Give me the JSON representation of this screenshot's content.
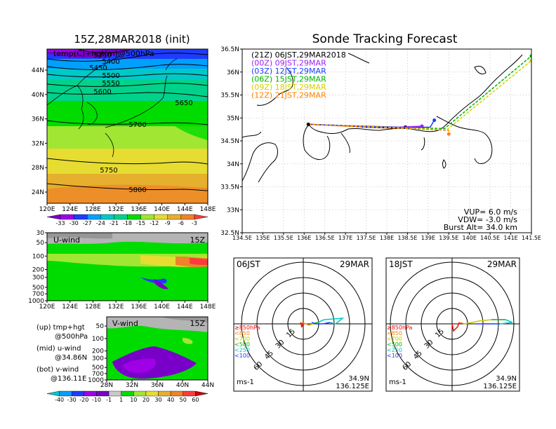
{
  "panel_titles": {
    "init": "15Z,28MAR2018 (init)",
    "main": "Sonde Tracking Forecast"
  },
  "map_overlay_label": "temp(C)+hgt(m)@500hPa",
  "legend_notes": {
    "up": "(up) tmp+hgt",
    "up2": "@500hPa",
    "mid": "(mid) u-wind",
    "mid2": "@34.86N",
    "bot": "(bot) v-wind",
    "bot2": "@136.11E"
  },
  "uwind_label": "U-wind",
  "vwind_label": "V-wind",
  "hour_tag": "15Z",
  "launch_list": [
    {
      "text": "(21Z)  06JST,29MAR2018",
      "color": "#000000"
    },
    {
      "text": "(00Z)  09JST,29MAR",
      "color": "#a020f0"
    },
    {
      "text": "(03Z)  12JST,29MAR",
      "color": "#1e3cff"
    },
    {
      "text": "(06Z)  15JST,29MAR",
      "color": "#00b400"
    },
    {
      "text": "(09Z)  18JST,29MAR",
      "color": "#d2d200"
    },
    {
      "text": "(12Z)  21JST,29MAR",
      "color": "#ff8200"
    }
  ],
  "sonde_params": {
    "vup": "VUP=  6.0  m/s",
    "vdw": "VDW=  -3.0  m/s",
    "burst": "Burst Alt=  34.0  km"
  },
  "polar": [
    {
      "left": "06JST",
      "right": "29MAR",
      "lat": "34.9N",
      "lon": "136.125E",
      "unit": "ms-1"
    },
    {
      "left": "18JST",
      "right": "29MAR",
      "lat": "34.9N",
      "lon": "136.125E",
      "unit": "ms-1"
    }
  ],
  "polar_rings": [
    "15",
    "30",
    "45",
    "60"
  ],
  "polar_levels": [
    {
      "text": "≥850hPa",
      "color": "#ff0000"
    },
    {
      "text": "<850",
      "color": "#ff8200"
    },
    {
      "text": "<700",
      "color": "#c8c800"
    },
    {
      "text": "<500",
      "color": "#00b400"
    },
    {
      "text": "<250",
      "color": "#00c8c8"
    },
    {
      "text": "<100",
      "color": "#1e3cff"
    }
  ],
  "temp_colorbar": {
    "labels": [
      "-33",
      "-30",
      "-27",
      "-24",
      "-21",
      "-18",
      "-15",
      "-12",
      "-9",
      "-6",
      "-3"
    ],
    "colors": [
      "#7800c8",
      "#a000e6",
      "#1e3cff",
      "#00a0ff",
      "#00c8c8",
      "#00d28c",
      "#00dc00",
      "#a0e632",
      "#e6dc32",
      "#e6af2d",
      "#f08228",
      "#fa3c3c"
    ]
  },
  "wind_colorbar": {
    "labels": [
      "-40",
      "-30",
      "-20",
      "-10",
      "-1",
      "1",
      "10",
      "20",
      "30",
      "40",
      "50",
      "60"
    ],
    "colors": [
      "#00c8c8",
      "#00a0ff",
      "#1e3cff",
      "#a000e6",
      "#7800c8",
      "#c8c8c8",
      "#00dc00",
      "#a0e632",
      "#e6dc32",
      "#e6af2d",
      "#f08228",
      "#fa3c3c",
      "#c80000"
    ]
  },
  "chart_data": [
    {
      "type": "heatmap",
      "title": "15Z,28MAR2018 (init)",
      "variable": "temp(C)+hgt(m)@500hPa",
      "x_ticks": [
        "120E",
        "124E",
        "128E",
        "132E",
        "136E",
        "140E",
        "144E",
        "148E"
      ],
      "y_ticks": [
        "24N",
        "28N",
        "32N",
        "36N",
        "40N",
        "44N"
      ],
      "contour_labels": [
        "5350",
        "5400",
        "5450",
        "5500",
        "5550",
        "5600",
        "5650",
        "5700",
        "5750",
        "5800"
      ],
      "temp_range": [
        -33,
        -3
      ]
    },
    {
      "type": "heatmap",
      "title": "U-wind",
      "x_ticks": [
        "120E",
        "124E",
        "128E",
        "132E",
        "136E",
        "140E",
        "144E",
        "148E"
      ],
      "y_ticks": [
        "30",
        "50",
        "100",
        "200",
        "300",
        "500",
        "700",
        "1000"
      ]
    },
    {
      "type": "heatmap",
      "title": "V-wind",
      "x_ticks": [
        "28N",
        "32N",
        "36N",
        "40N",
        "44N"
      ],
      "y_ticks": [
        "50",
        "100",
        "200",
        "300",
        "500",
        "700",
        "1000"
      ]
    },
    {
      "type": "line",
      "title": "Sonde Tracking Forecast",
      "x_ticks": [
        "134.5E",
        "135E",
        "135.5E",
        "136E",
        "136.5E",
        "137E",
        "137.5E",
        "138E",
        "138.5E",
        "139E",
        "139.5E",
        "140E",
        "140.5E",
        "141E",
        "141.5E"
      ],
      "y_ticks": [
        "32.5N",
        "33N",
        "33.5N",
        "34N",
        "34.5N",
        "35N",
        "35.5N",
        "36N",
        "36.5N"
      ],
      "xlim": [
        134.5,
        141.5
      ],
      "ylim": [
        32.5,
        36.5
      ],
      "launch": [
        136.1,
        34.86
      ],
      "series": [
        {
          "name": "(21Z)  06JST,29MAR2018",
          "color": "#000000",
          "x": [
            136.1,
            136.8,
            137.5,
            138.1,
            138.45
          ],
          "y": [
            34.86,
            34.84,
            34.8,
            34.78,
            34.8
          ]
        },
        {
          "name": "(00Z)  09JST,29MAR",
          "color": "#a020f0",
          "x": [
            136.1,
            136.8,
            137.5,
            138.3,
            138.85
          ],
          "y": [
            34.86,
            34.84,
            34.82,
            34.8,
            34.82
          ]
        },
        {
          "name": "(03Z)  12JST,29MAR",
          "color": "#1e3cff",
          "x": [
            136.1,
            136.9,
            137.7,
            138.5,
            139.05,
            139.15
          ],
          "y": [
            34.86,
            34.83,
            34.81,
            34.79,
            34.8,
            34.95
          ]
        },
        {
          "name": "(06Z)  15JST,29MAR",
          "color": "#00b400",
          "x": [
            136.1,
            137.0,
            137.9,
            138.7,
            139.4,
            141.5
          ],
          "y": [
            34.86,
            34.83,
            34.8,
            34.78,
            34.77,
            36.35
          ]
        },
        {
          "name": "(09Z)  18JST,29MAR",
          "color": "#d2d200",
          "x": [
            136.1,
            137.0,
            137.9,
            138.7,
            139.45,
            141.5
          ],
          "y": [
            34.86,
            34.83,
            34.8,
            34.77,
            34.74,
            36.25
          ]
        },
        {
          "name": "(12Z)  21JST,29MAR",
          "color": "#ff8200",
          "x": [
            136.1,
            137.0,
            137.9,
            138.7,
            139.5,
            139.5
          ],
          "y": [
            34.86,
            34.82,
            34.79,
            34.76,
            34.73,
            34.65
          ]
        }
      ]
    }
  ]
}
